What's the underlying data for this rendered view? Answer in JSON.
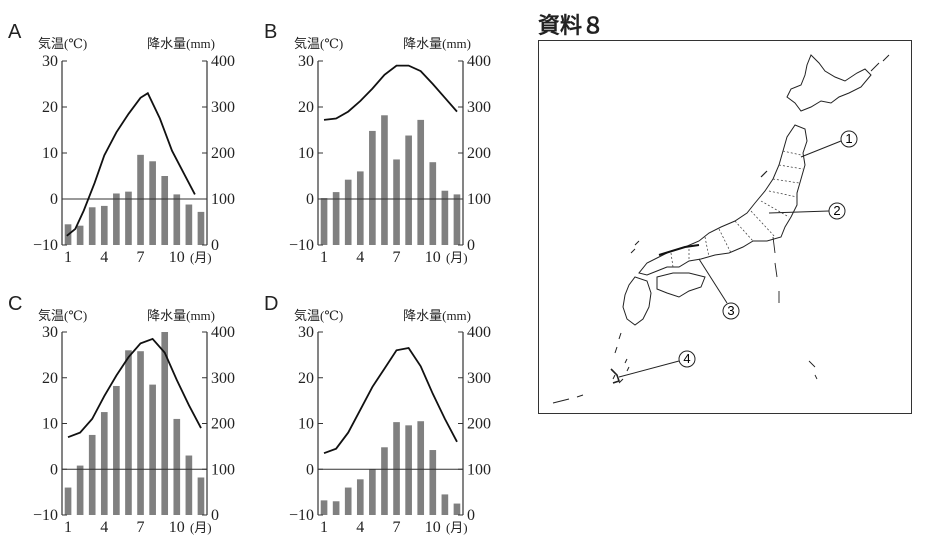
{
  "chart_data": [
    {
      "type": "bar+line",
      "panel": "A",
      "y_left_label": "気温(℃)",
      "y_right_label": "降水量(mm)",
      "x_label_suffix": "(月)",
      "x": [
        1,
        2,
        3,
        4,
        5,
        6,
        7,
        8,
        9,
        10,
        11,
        12
      ],
      "x_ticks": [
        "1",
        "4",
        "7",
        "10"
      ],
      "y_left_ticks": [
        "30",
        "20",
        "10",
        "0",
        "−10"
      ],
      "y_right_ticks": [
        "400",
        "300",
        "200",
        "100",
        "0"
      ],
      "y_left_range": [
        -10,
        30
      ],
      "y_right_range": [
        0,
        400
      ],
      "temperature": [
        -8,
        -6.5,
        -2.5,
        3.5,
        9.5,
        14.5,
        18.5,
        22,
        23,
        17.5,
        10.5,
        5.5,
        1
      ],
      "temperature_x": [
        0.9,
        1.6,
        2.3,
        3.2,
        4.0,
        5.0,
        6.0,
        7.0,
        7.6,
        8.6,
        9.6,
        10.6,
        11.5
      ],
      "precipitation": [
        45,
        42,
        82,
        85,
        112,
        116,
        196,
        182,
        150,
        110,
        88,
        72
      ]
    },
    {
      "type": "bar+line",
      "panel": "B",
      "y_left_label": "気温(℃)",
      "y_right_label": "降水量(mm)",
      "x_label_suffix": "(月)",
      "x": [
        1,
        2,
        3,
        4,
        5,
        6,
        7,
        8,
        9,
        10,
        11,
        12
      ],
      "x_ticks": [
        "1",
        "4",
        "7",
        "10"
      ],
      "y_left_ticks": [
        "30",
        "20",
        "10",
        "0",
        "−10"
      ],
      "y_right_ticks": [
        "400",
        "300",
        "200",
        "100",
        "0"
      ],
      "y_left_range": [
        -10,
        30
      ],
      "y_right_range": [
        0,
        400
      ],
      "temperature": [
        17.2,
        17.5,
        19.0,
        21.3,
        24.0,
        27.0,
        29.0,
        29.0,
        27.8,
        25.0,
        22.0,
        19.0
      ],
      "precipitation": [
        102,
        115,
        142,
        160,
        248,
        282,
        186,
        238,
        272,
        180,
        118,
        110
      ]
    },
    {
      "type": "bar+line",
      "panel": "C",
      "y_left_label": "気温(℃)",
      "y_right_label": "降水量(mm)",
      "x_label_suffix": "(月)",
      "x": [
        1,
        2,
        3,
        4,
        5,
        6,
        7,
        8,
        9,
        10,
        11,
        12
      ],
      "x_ticks": [
        "1",
        "4",
        "7",
        "10"
      ],
      "y_left_ticks": [
        "30",
        "20",
        "10",
        "0",
        "−10"
      ],
      "y_right_ticks": [
        "400",
        "300",
        "200",
        "100",
        "0"
      ],
      "y_left_range": [
        -10,
        30
      ],
      "y_right_range": [
        0,
        400
      ],
      "temperature": [
        7,
        8,
        11,
        16,
        20.5,
        24.5,
        27.5,
        28.5,
        25.5,
        19.5,
        14,
        9
      ],
      "precipitation": [
        60,
        108,
        175,
        225,
        282,
        360,
        358,
        285,
        400,
        210,
        130,
        82
      ]
    },
    {
      "type": "bar+line",
      "panel": "D",
      "y_left_label": "気温(℃)",
      "y_right_label": "降水量(mm)",
      "x_label_suffix": "(月)",
      "x": [
        1,
        2,
        3,
        4,
        5,
        6,
        7,
        8,
        9,
        10,
        11,
        12
      ],
      "x_ticks": [
        "1",
        "4",
        "7",
        "10"
      ],
      "y_left_ticks": [
        "30",
        "20",
        "10",
        "0",
        "−10"
      ],
      "y_right_ticks": [
        "400",
        "300",
        "200",
        "100",
        "0"
      ],
      "y_left_range": [
        -10,
        30
      ],
      "y_right_range": [
        0,
        400
      ],
      "temperature": [
        3.5,
        4.5,
        8,
        13,
        18,
        22,
        26,
        26.5,
        22.5,
        16.5,
        11,
        6
      ],
      "precipitation": [
        32,
        30,
        60,
        78,
        100,
        148,
        203,
        196,
        205,
        142,
        45,
        25
      ]
    }
  ],
  "map": {
    "title": "資料８",
    "markers": [
      "1",
      "2",
      "3",
      "4"
    ]
  },
  "colors": {
    "bar": "#808080",
    "line": "#111111",
    "axis": "#333333"
  }
}
